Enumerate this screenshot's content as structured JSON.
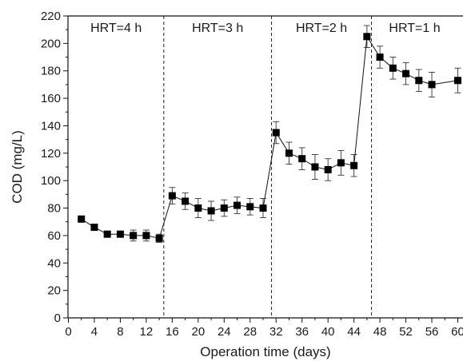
{
  "chart_data": {
    "type": "line",
    "xlabel": "Operation time (days)",
    "ylabel": "COD (mg/L)",
    "xlim": [
      0,
      60
    ],
    "ylim": [
      0,
      220
    ],
    "x_ticks": [
      0,
      4,
      8,
      12,
      16,
      20,
      24,
      28,
      32,
      36,
      40,
      44,
      48,
      52,
      56,
      60
    ],
    "y_ticks": [
      0,
      20,
      40,
      60,
      80,
      100,
      120,
      140,
      160,
      180,
      200,
      220
    ],
    "grid": false,
    "phase_boundaries": [
      14.7,
      31.3,
      46.7
    ],
    "phases": [
      {
        "label": "HRT=4 h",
        "from": 0,
        "to": 14.7
      },
      {
        "label": "HRT=3 h",
        "from": 14.7,
        "to": 31.3
      },
      {
        "label": "HRT=2 h",
        "from": 31.3,
        "to": 46.7
      },
      {
        "label": "HRT=1 h",
        "from": 46.7,
        "to": 60
      }
    ],
    "series": [
      {
        "marker": "filled-square",
        "color": "#000000",
        "x": [
          2,
          4,
          6,
          8,
          10,
          12,
          14,
          16,
          18,
          20,
          22,
          24,
          26,
          28,
          30,
          32,
          34,
          36,
          38,
          40,
          42,
          44,
          46,
          48,
          50,
          52,
          54,
          56,
          60
        ],
        "y": [
          72,
          66,
          61,
          61,
          60,
          60,
          58,
          89,
          85,
          80,
          78,
          80,
          82,
          81,
          80,
          135,
          120,
          116,
          110,
          108,
          113,
          111,
          205,
          190,
          182,
          178,
          173,
          170,
          173
        ],
        "error": [
          0,
          0,
          0,
          0,
          4,
          4,
          3,
          6,
          6,
          7,
          7,
          6,
          6,
          6,
          7,
          8,
          8,
          8,
          9,
          8,
          9,
          8,
          8,
          8,
          8,
          8,
          8,
          9,
          9
        ]
      }
    ]
  }
}
